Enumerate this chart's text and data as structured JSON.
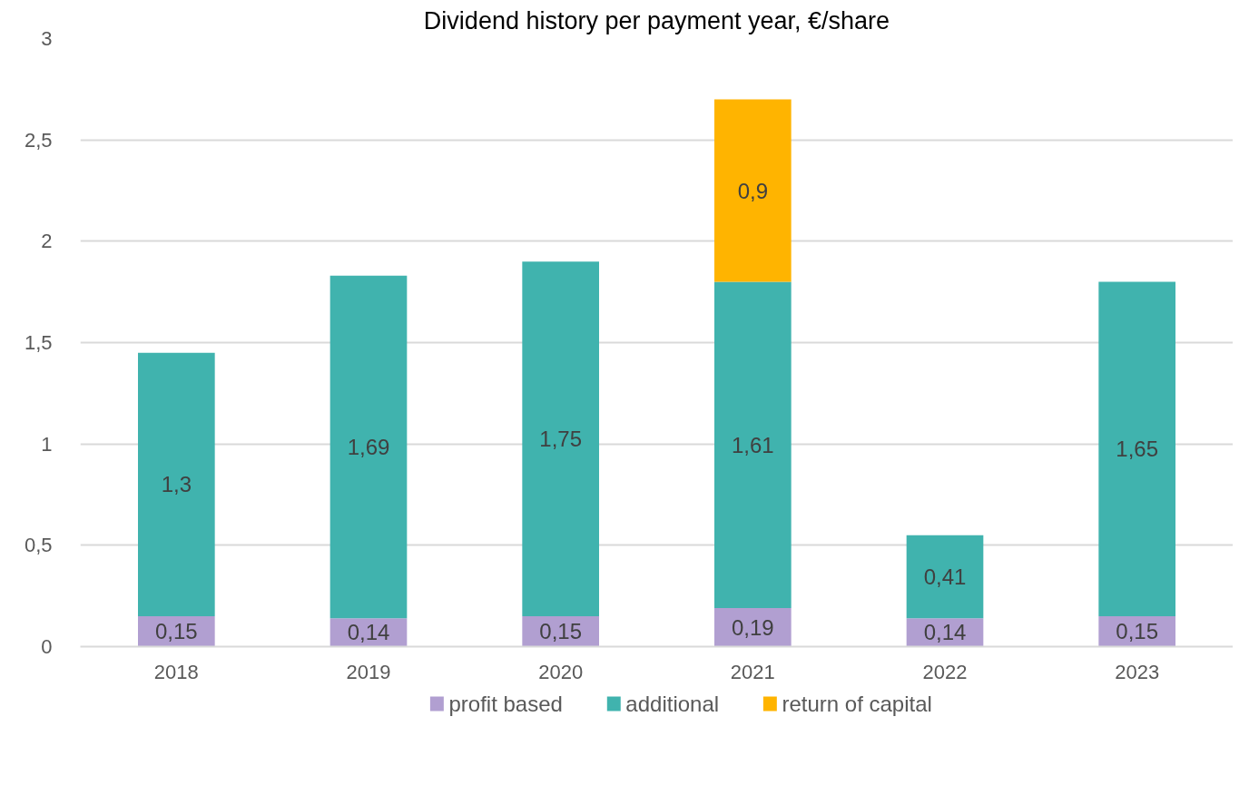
{
  "chart_data": {
    "type": "bar",
    "title": "Dividend history per payment year, €/share",
    "stacked": true,
    "categories": [
      "2018",
      "2019",
      "2020",
      "2021",
      "2022",
      "2023"
    ],
    "series": [
      {
        "name": "profit based",
        "color": "#b19fd1",
        "values": [
          0.15,
          0.14,
          0.15,
          0.19,
          0.14,
          0.15
        ],
        "value_labels": [
          "0,15",
          "0,14",
          "0,15",
          "0,19",
          "0,14",
          "0,15"
        ]
      },
      {
        "name": "additional",
        "color": "#40b3ae",
        "values": [
          1.3,
          1.69,
          1.75,
          1.61,
          0.41,
          1.65
        ],
        "value_labels": [
          "1,3",
          "1,69",
          "1,75",
          "1,61",
          "0,41",
          "1,65"
        ]
      },
      {
        "name": "return of capital",
        "color": "#ffb400",
        "values": [
          null,
          null,
          null,
          0.9,
          null,
          null
        ],
        "value_labels": [
          null,
          null,
          null,
          "0,9",
          null,
          null
        ]
      }
    ],
    "ylim": [
      0,
      3
    ],
    "yticks": [
      0,
      {
        "value": 0.5,
        "label": "0,5"
      },
      1,
      {
        "value": 1.5,
        "label": "1,5"
      },
      2,
      {
        "value": 2.5,
        "label": "2,5"
      },
      3
    ],
    "grid": "y",
    "legend": "bottom"
  }
}
